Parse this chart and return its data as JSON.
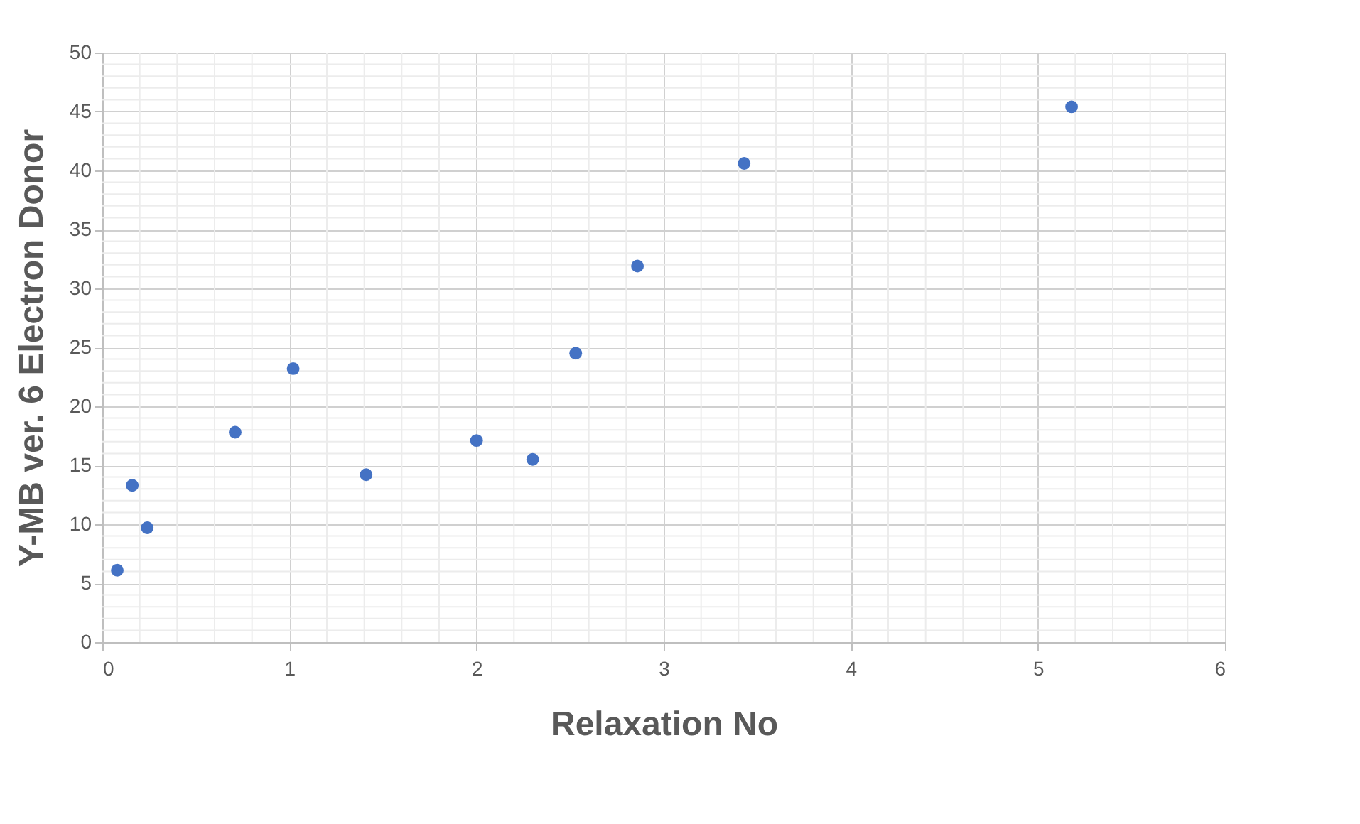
{
  "chart_data": {
    "type": "scatter",
    "xlabel": "Relaxation No",
    "ylabel": "Y-MB ver. 6 Electron Donor",
    "x": [
      0.08,
      0.16,
      0.24,
      0.71,
      1.02,
      1.41,
      2.0,
      2.3,
      2.53,
      2.86,
      3.43,
      5.18
    ],
    "series": [
      {
        "color": "#4472c4",
        "values": [
          6.1,
          13.3,
          9.7,
          17.8,
          23.2,
          14.2,
          17.1,
          15.5,
          24.5,
          31.9,
          40.6,
          45.4
        ]
      }
    ],
    "xlim": [
      0,
      6
    ],
    "xticks": [
      0,
      1,
      2,
      3,
      4,
      5,
      6
    ],
    "ylim": [
      0,
      50
    ],
    "yticks": [
      0,
      5,
      10,
      15,
      20,
      25,
      30,
      35,
      40,
      45,
      50
    ],
    "grid": true,
    "marker": "circle"
  }
}
